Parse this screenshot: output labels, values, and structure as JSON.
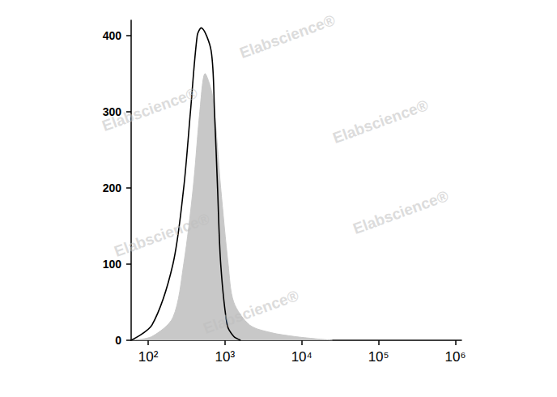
{
  "chart_data": {
    "type": "histogram_overlay",
    "log": "x",
    "grid": false,
    "xlim": [
      60,
      1200000
    ],
    "xticks": [
      {
        "value": 100,
        "label": "10²"
      },
      {
        "value": 1000,
        "label": "10³"
      },
      {
        "value": 10000,
        "label": "10⁴"
      },
      {
        "value": 100000,
        "label": "10⁵"
      },
      {
        "value": 1000000,
        "label": "10⁶"
      }
    ],
    "ylim": [
      0,
      420
    ],
    "yticks": [
      0,
      100,
      200,
      300,
      400
    ],
    "annotations": [
      "Elabscience®",
      "Elabscience®",
      "Elabscience®",
      "Elabscience®",
      "Elabscience®",
      "Elabscience®"
    ],
    "series": [
      {
        "type": "area",
        "color": "#c8c8c8",
        "x": [
          60,
          112,
          210,
          290,
          385,
          470,
          550,
          690,
          880,
          1100,
          1300,
          2100,
          4000,
          8000,
          15000,
          25000
        ],
        "values": [
          0,
          5,
          30,
          100,
          200,
          300,
          350,
          320,
          200,
          100,
          50,
          20,
          10,
          5,
          2,
          0
        ]
      },
      {
        "type": "line",
        "color": "#000000",
        "x": [
          60,
          112,
          210,
          290,
          355,
          435,
          490,
          660,
          730,
          800,
          880,
          1070,
          1300,
          1600
        ],
        "values": [
          0,
          20,
          100,
          200,
          300,
          400,
          410,
          380,
          300,
          200,
          100,
          20,
          5,
          0
        ]
      }
    ]
  }
}
